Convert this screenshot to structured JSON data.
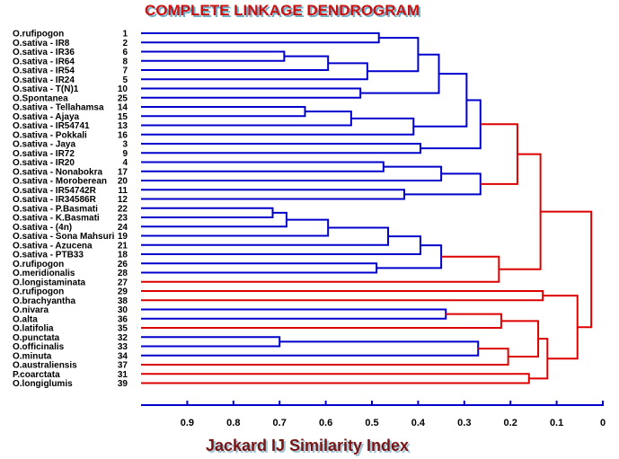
{
  "chart_data": {
    "type": "dendrogram",
    "title": "COMPLETE LINKAGE DENDROGRAM",
    "xlabel": "Jackard IJ Similarity Index",
    "xlim": [
      1.0,
      0.0
    ],
    "ticks": [
      "0.9",
      "0.8",
      "0.7",
      "0.6",
      "0.5",
      "0.4",
      "0.3",
      "0.2",
      "0.1",
      "0"
    ],
    "tick_values": [
      0.9,
      0.8,
      0.7,
      0.6,
      0.5,
      0.4,
      0.3,
      0.2,
      0.1,
      0.0
    ],
    "colors": {
      "blue_cluster": "#0000cc",
      "red_cluster": "#dd0000",
      "title_fill": "#cc1111",
      "title_shadow": "#6fb0c8",
      "axis_title_fill": "#7a1515",
      "axis_title_shadow": "#9fc4d4",
      "axis": "#0000cc"
    },
    "leaves": [
      {
        "label": "O.rufipogon",
        "num": "1"
      },
      {
        "label": "O.sativa - IR8",
        "num": "2"
      },
      {
        "label": "O.sativa - IR36",
        "num": "6"
      },
      {
        "label": "O.sativa - IR64",
        "num": "8"
      },
      {
        "label": "O.sativa - IR54",
        "num": "7"
      },
      {
        "label": "O.sativa - IR24",
        "num": "5"
      },
      {
        "label": "O.sativa - T(N)1",
        "num": "10"
      },
      {
        "label": "O.Spontanea",
        "num": "25"
      },
      {
        "label": "O.sativa - Tellahamsa",
        "num": "14"
      },
      {
        "label": "O.sativa - Ajaya",
        "num": "15"
      },
      {
        "label": "O.sativa - IR54741",
        "num": "13"
      },
      {
        "label": "O.sativa - Pokkali",
        "num": "16"
      },
      {
        "label": "O.sativa - Jaya",
        "num": "3"
      },
      {
        "label": "O.sativa - IR72",
        "num": "9"
      },
      {
        "label": "O.sativa - IR20",
        "num": "4"
      },
      {
        "label": "O.sativa - Nonabokra",
        "num": "17"
      },
      {
        "label": "O.sativa - Moroberean",
        "num": "20"
      },
      {
        "label": "O.sativa - IR54742R",
        "num": "11"
      },
      {
        "label": "O.sativa - IR34586R",
        "num": "12"
      },
      {
        "label": "O.sativa - P.Basmati",
        "num": "22"
      },
      {
        "label": "O.sativa - K.Basmati",
        "num": "23"
      },
      {
        "label": "O.sativa - (4n)",
        "num": "24"
      },
      {
        "label": "O.sativa - Sona Mahsuri",
        "num": "19"
      },
      {
        "label": "O.sativa - Azucena",
        "num": "21"
      },
      {
        "label": "O.sativa - PTB33",
        "num": "18"
      },
      {
        "label": "O.rufipogon",
        "num": "26"
      },
      {
        "label": "O.meridionalis",
        "num": "28"
      },
      {
        "label": "O.longistaminata",
        "num": "27"
      },
      {
        "label": "O.rufipogon",
        "num": "29"
      },
      {
        "label": "O.brachyantha",
        "num": "38"
      },
      {
        "label": "O.nivara",
        "num": "30"
      },
      {
        "label": "O.alta",
        "num": "36"
      },
      {
        "label": "O.latifolia",
        "num": "35"
      },
      {
        "label": "O.punctata",
        "num": "32"
      },
      {
        "label": "O.officinalis",
        "num": "33"
      },
      {
        "label": "O.minuta",
        "num": "34"
      },
      {
        "label": "O.australiensis",
        "num": "37"
      },
      {
        "label": "P.coarctata",
        "num": "31"
      },
      {
        "label": "O.longiglumis",
        "num": "39"
      }
    ],
    "merges": [
      {
        "id": "n1",
        "children": [
          0,
          1
        ],
        "similarity": 0.485,
        "color": "blue"
      },
      {
        "id": "n2",
        "children": [
          2,
          3
        ],
        "similarity": 0.69,
        "color": "blue"
      },
      {
        "id": "n3",
        "children": [
          "n2",
          4
        ],
        "similarity": 0.595,
        "color": "blue"
      },
      {
        "id": "n4",
        "children": [
          "n3",
          5
        ],
        "similarity": 0.51,
        "color": "blue"
      },
      {
        "id": "n5",
        "children": [
          "n1",
          "n4"
        ],
        "similarity": 0.4,
        "color": "blue"
      },
      {
        "id": "n6",
        "children": [
          6,
          7
        ],
        "similarity": 0.525,
        "color": "blue"
      },
      {
        "id": "n7",
        "children": [
          "n5",
          "n6"
        ],
        "similarity": 0.355,
        "color": "blue"
      },
      {
        "id": "n8",
        "children": [
          8,
          9
        ],
        "similarity": 0.645,
        "color": "blue"
      },
      {
        "id": "n9",
        "children": [
          "n8",
          10
        ],
        "similarity": 0.545,
        "color": "blue"
      },
      {
        "id": "n10",
        "children": [
          "n9",
          11
        ],
        "similarity": 0.41,
        "color": "blue"
      },
      {
        "id": "n11",
        "children": [
          "n7",
          "n10"
        ],
        "similarity": 0.295,
        "color": "blue"
      },
      {
        "id": "n12",
        "children": [
          12,
          13
        ],
        "similarity": 0.395,
        "color": "blue"
      },
      {
        "id": "n13",
        "children": [
          "n11",
          "n12"
        ],
        "similarity": 0.265,
        "color": "blue"
      },
      {
        "id": "n14",
        "children": [
          14,
          15
        ],
        "similarity": 0.475,
        "color": "blue"
      },
      {
        "id": "n15",
        "children": [
          "n14",
          16
        ],
        "similarity": 0.35,
        "color": "blue"
      },
      {
        "id": "n16",
        "children": [
          17,
          18
        ],
        "similarity": 0.43,
        "color": "blue"
      },
      {
        "id": "n17",
        "children": [
          "n15",
          "n16"
        ],
        "similarity": 0.265,
        "color": "blue"
      },
      {
        "id": "n18",
        "children": [
          "n13",
          "n17"
        ],
        "similarity": 0.185,
        "color": "red"
      },
      {
        "id": "n19",
        "children": [
          19,
          20
        ],
        "similarity": 0.715,
        "color": "blue"
      },
      {
        "id": "n20",
        "children": [
          "n19",
          21
        ],
        "similarity": 0.685,
        "color": "blue"
      },
      {
        "id": "n21",
        "children": [
          "n20",
          22
        ],
        "similarity": 0.595,
        "color": "blue"
      },
      {
        "id": "n22",
        "children": [
          "n21",
          23
        ],
        "similarity": 0.465,
        "color": "blue"
      },
      {
        "id": "n23",
        "children": [
          "n22",
          24
        ],
        "similarity": 0.395,
        "color": "blue"
      },
      {
        "id": "n24",
        "children": [
          25,
          26
        ],
        "similarity": 0.49,
        "color": "blue"
      },
      {
        "id": "n25",
        "children": [
          "n23",
          "n24"
        ],
        "similarity": 0.35,
        "color": "blue"
      },
      {
        "id": "n26",
        "children": [
          "n25",
          27
        ],
        "similarity": 0.225,
        "color": "red"
      },
      {
        "id": "n27",
        "children": [
          "n18",
          "n26"
        ],
        "similarity": 0.135,
        "color": "red"
      },
      {
        "id": "n28",
        "children": [
          28,
          29
        ],
        "similarity": 0.13,
        "color": "red"
      },
      {
        "id": "n29",
        "children": [
          30,
          31
        ],
        "similarity": 0.34,
        "color": "blue"
      },
      {
        "id": "n30",
        "children": [
          "n29",
          32
        ],
        "similarity": 0.22,
        "color": "red"
      },
      {
        "id": "n31",
        "children": [
          33,
          34
        ],
        "similarity": 0.7,
        "color": "blue"
      },
      {
        "id": "n32",
        "children": [
          "n31",
          35
        ],
        "similarity": 0.27,
        "color": "blue"
      },
      {
        "id": "n33",
        "children": [
          "n32",
          36
        ],
        "similarity": 0.205,
        "color": "red"
      },
      {
        "id": "n34",
        "children": [
          "n30",
          "n33"
        ],
        "similarity": 0.14,
        "color": "red"
      },
      {
        "id": "n35",
        "children": [
          37,
          38
        ],
        "similarity": 0.16,
        "color": "red"
      },
      {
        "id": "n36",
        "children": [
          "n34",
          "n35"
        ],
        "similarity": 0.12,
        "color": "red"
      },
      {
        "id": "n37",
        "children": [
          "n28",
          "n36"
        ],
        "similarity": 0.055,
        "color": "red"
      },
      {
        "id": "n38",
        "children": [
          "n27",
          "n37"
        ],
        "similarity": 0.025,
        "color": "red"
      }
    ]
  }
}
